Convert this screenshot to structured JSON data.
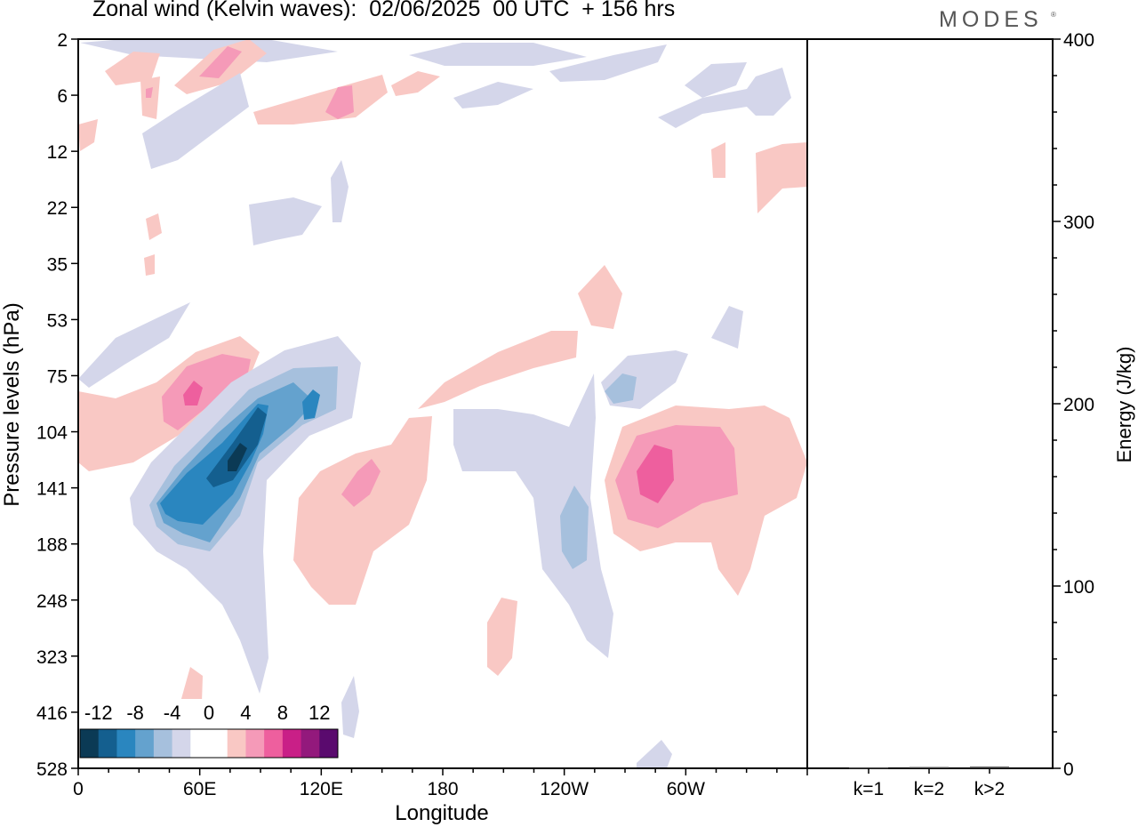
{
  "title": "Zonal wind (Kelvin waves):  02/06/2025  00 UTC  + 156 hrs",
  "brand": "MODES",
  "brand_mark": "®",
  "chart_data": [
    {
      "type": "heatmap",
      "xlabel": "Longitude",
      "ylabel": "Pressure levels (hPa)",
      "x_ticks": [
        "0",
        "60E",
        "120E",
        "180",
        "120W",
        "60W"
      ],
      "x_tick_degrees": [
        0,
        60,
        120,
        180,
        240,
        300
      ],
      "xlim": [
        0,
        360
      ],
      "y_ticks": [
        "2",
        "6",
        "12",
        "22",
        "35",
        "53",
        "75",
        "104",
        "141",
        "188",
        "248",
        "323",
        "416",
        "528"
      ],
      "y_scale": "categorical pressure levels (top = 2 hPa, bottom = 528 hPa)",
      "colorbar": {
        "labels": [
          "-12",
          "-8",
          "-4",
          "0",
          "4",
          "8",
          "12"
        ],
        "colors": [
          "#0b3a55",
          "#145f8f",
          "#2a86bf",
          "#64a2ce",
          "#a6c0dd",
          "#d4d6ea",
          "#ffffff",
          "#ffffff",
          "#f9c8c4",
          "#f59ab8",
          "#ee5f9e",
          "#c91f87",
          "#93197c",
          "#5a0a6e"
        ]
      },
      "features": [
        {
          "sign": "negative",
          "peak": -12,
          "lon_center": 75,
          "level_center": "141"
        },
        {
          "sign": "positive",
          "peak": 8,
          "lon_center": 57,
          "level_center": "75"
        },
        {
          "sign": "positive",
          "peak": 8,
          "lon_center": 285,
          "level_center": "141"
        },
        {
          "sign": "positive",
          "peak": 4,
          "lon_center": 135,
          "level_center": "141"
        },
        {
          "sign": "negative",
          "peak": -4,
          "lon_center": 245,
          "level_center": "141"
        }
      ]
    },
    {
      "type": "bar",
      "ylabel": "Energy (J/kg)",
      "categories": [
        "k=1",
        "k=2",
        "k>2"
      ],
      "values": [
        0.5,
        0.7,
        0.9
      ],
      "ylim": [
        0,
        400
      ],
      "y_ticks": [
        "0",
        "100",
        "200",
        "300",
        "400"
      ]
    }
  ]
}
